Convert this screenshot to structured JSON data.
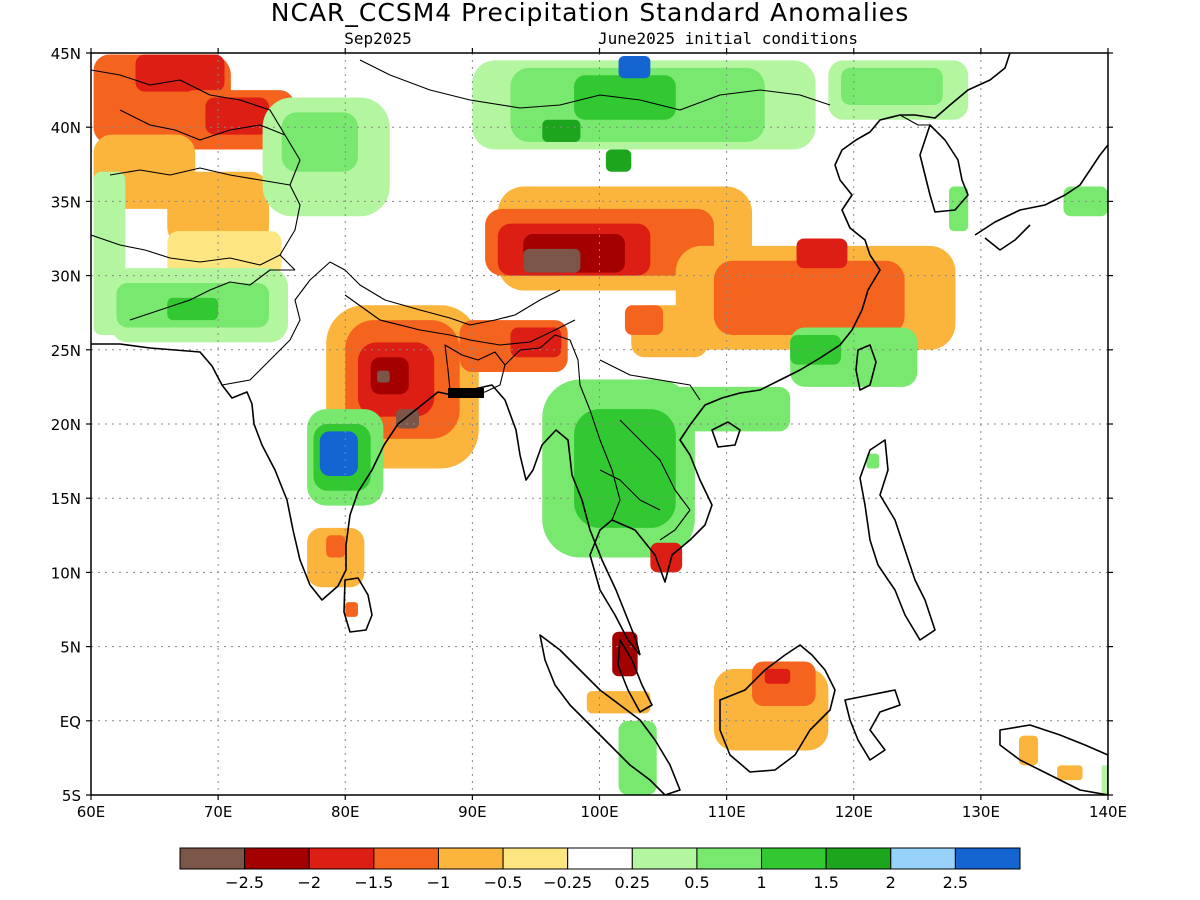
{
  "title": "NCAR_CCSM4 Precipitation Standard Anomalies",
  "subtitle_left": "Sep2025",
  "subtitle_right": "June2025 initial conditions",
  "map_extent": {
    "lon_min": 60,
    "lon_max": 140,
    "lat_min": -5,
    "lat_max": 45
  },
  "lon_ticks": [
    {
      "value": 60,
      "label": "60E"
    },
    {
      "value": 70,
      "label": "70E"
    },
    {
      "value": 80,
      "label": "80E"
    },
    {
      "value": 90,
      "label": "90E"
    },
    {
      "value": 100,
      "label": "100E"
    },
    {
      "value": 110,
      "label": "110E"
    },
    {
      "value": 120,
      "label": "120E"
    },
    {
      "value": 130,
      "label": "130E"
    },
    {
      "value": 140,
      "label": "140E"
    }
  ],
  "lat_ticks": [
    {
      "value": 45,
      "label": "45N"
    },
    {
      "value": 40,
      "label": "40N"
    },
    {
      "value": 35,
      "label": "35N"
    },
    {
      "value": 30,
      "label": "30N"
    },
    {
      "value": 25,
      "label": "25N"
    },
    {
      "value": 20,
      "label": "20N"
    },
    {
      "value": 15,
      "label": "15N"
    },
    {
      "value": 10,
      "label": "10N"
    },
    {
      "value": 5,
      "label": "5N"
    },
    {
      "value": 0,
      "label": "EQ"
    },
    {
      "value": -5,
      "label": "5S"
    }
  ],
  "colorbar": {
    "colors": [
      "#7b5548",
      "#a50000",
      "#dc1e14",
      "#f5641e",
      "#fbb43c",
      "#fde682",
      "#ffffff",
      "#b4f5a0",
      "#78e86e",
      "#32c832",
      "#1ea51e",
      "#96d2fa",
      "#1464d2"
    ],
    "labels": [
      "−2.5",
      "−2",
      "−1.5",
      "−1",
      "−0.5",
      "−0.25",
      "0.25",
      "0.5",
      "1",
      "1.5",
      "2",
      "2.5"
    ]
  },
  "anomaly_regions": [
    {
      "level": -1.0,
      "lon": 60.2,
      "lat": 44.9,
      "w": 5.0,
      "h": 6.0
    },
    {
      "level": -1.0,
      "lon": 63.0,
      "lat": 44.9,
      "w": 8.0,
      "h": 5.5
    },
    {
      "level": -1.5,
      "lon": 63.5,
      "lat": 44.9,
      "w": 7.0,
      "h": 2.5
    },
    {
      "level": -1.0,
      "lon": 67.0,
      "lat": 42.5,
      "w": 9.0,
      "h": 4.0
    },
    {
      "level": -1.5,
      "lon": 69.0,
      "lat": 42.0,
      "w": 5.0,
      "h": 2.5
    },
    {
      "level": -0.5,
      "lon": 60.2,
      "lat": 39.5,
      "w": 8.0,
      "h": 5.0
    },
    {
      "level": -0.5,
      "lon": 66.0,
      "lat": 37.0,
      "w": 8.0,
      "h": 5.0
    },
    {
      "level": -0.25,
      "lon": 66.0,
      "lat": 33.0,
      "w": 9.0,
      "h": 3.0
    },
    {
      "level": 0.5,
      "lon": 60.2,
      "lat": 37.0,
      "w": 2.5,
      "h": 11.0
    },
    {
      "level": 0.5,
      "lon": 61.5,
      "lat": 30.5,
      "w": 14.0,
      "h": 5.0
    },
    {
      "level": 1.0,
      "lon": 62.0,
      "lat": 29.5,
      "w": 12.0,
      "h": 3.0
    },
    {
      "level": 1.5,
      "lon": 66.0,
      "lat": 28.5,
      "w": 4.0,
      "h": 1.5
    },
    {
      "level": 0.5,
      "lon": 73.5,
      "lat": 42.0,
      "w": 10.0,
      "h": 8.0
    },
    {
      "level": 1.0,
      "lon": 75.0,
      "lat": 41.0,
      "w": 6.0,
      "h": 4.0
    },
    {
      "level": 0.5,
      "lon": 90.0,
      "lat": 44.5,
      "w": 27.0,
      "h": 6.0
    },
    {
      "level": 1.0,
      "lon": 93.0,
      "lat": 44.0,
      "w": 20.0,
      "h": 5.0
    },
    {
      "level": 1.5,
      "lon": 98.0,
      "lat": 43.5,
      "w": 8.0,
      "h": 3.0
    },
    {
      "level": 2.5,
      "lon": 101.5,
      "lat": 44.8,
      "w": 2.5,
      "h": 1.5
    },
    {
      "level": 2.0,
      "lon": 95.5,
      "lat": 40.5,
      "w": 3.0,
      "h": 1.5
    },
    {
      "level": 2.0,
      "lon": 100.5,
      "lat": 38.5,
      "w": 2.0,
      "h": 1.5
    },
    {
      "level": 0.5,
      "lon": 118.0,
      "lat": 44.5,
      "w": 11.0,
      "h": 4.0
    },
    {
      "level": 1.0,
      "lon": 119.0,
      "lat": 44.0,
      "w": 8.0,
      "h": 2.5
    },
    {
      "level": -0.5,
      "lon": 92.0,
      "lat": 36.0,
      "w": 20.0,
      "h": 7.0
    },
    {
      "level": -1.0,
      "lon": 91.0,
      "lat": 34.5,
      "w": 18.0,
      "h": 4.5
    },
    {
      "level": -1.5,
      "lon": 92.0,
      "lat": 33.5,
      "w": 12.0,
      "h": 3.5
    },
    {
      "level": -2.0,
      "lon": 94.0,
      "lat": 32.8,
      "w": 8.0,
      "h": 2.6
    },
    {
      "level": -2.5,
      "lon": 94.0,
      "lat": 31.8,
      "w": 4.5,
      "h": 1.6
    },
    {
      "level": -0.5,
      "lon": 106.0,
      "lat": 32.0,
      "w": 22.0,
      "h": 7.0
    },
    {
      "level": -1.0,
      "lon": 109.0,
      "lat": 31.0,
      "w": 15.0,
      "h": 5.0
    },
    {
      "level": -1.5,
      "lon": 115.5,
      "lat": 32.5,
      "w": 4.0,
      "h": 2.0
    },
    {
      "level": -0.5,
      "lon": 102.5,
      "lat": 28.0,
      "w": 6.0,
      "h": 3.5
    },
    {
      "level": -1.0,
      "lon": 102.0,
      "lat": 28.0,
      "w": 3.0,
      "h": 2.0
    },
    {
      "level": 1.0,
      "lon": 115.0,
      "lat": 26.5,
      "w": 10.0,
      "h": 4.0
    },
    {
      "level": 1.5,
      "lon": 115.0,
      "lat": 26.0,
      "w": 4.0,
      "h": 2.0
    },
    {
      "level": 1.0,
      "lon": 103.0,
      "lat": 22.5,
      "w": 12.0,
      "h": 3.0
    },
    {
      "level": -0.5,
      "lon": 78.5,
      "lat": 28.0,
      "w": 12.0,
      "h": 11.0
    },
    {
      "level": -1.0,
      "lon": 80.0,
      "lat": 27.0,
      "w": 9.0,
      "h": 8.0
    },
    {
      "level": -1.5,
      "lon": 81.0,
      "lat": 25.5,
      "w": 6.0,
      "h": 5.0
    },
    {
      "level": -2.0,
      "lon": 82.0,
      "lat": 24.5,
      "w": 3.0,
      "h": 2.5
    },
    {
      "level": -2.5,
      "lon": 82.5,
      "lat": 23.6,
      "w": 1.0,
      "h": 0.8
    },
    {
      "level": -2.5,
      "lon": 84.0,
      "lat": 21.0,
      "w": 1.8,
      "h": 1.3
    },
    {
      "level": -1.0,
      "lon": 89.0,
      "lat": 27.0,
      "w": 8.5,
      "h": 3.5
    },
    {
      "level": -1.5,
      "lon": 93.0,
      "lat": 26.5,
      "w": 4.0,
      "h": 2.0
    },
    {
      "level": 1.0,
      "lon": 77.0,
      "lat": 21.0,
      "w": 6.0,
      "h": 6.5
    },
    {
      "level": 1.5,
      "lon": 77.5,
      "lat": 20.0,
      "w": 4.5,
      "h": 4.5
    },
    {
      "level": 2.5,
      "lon": 78.0,
      "lat": 19.5,
      "w": 3.0,
      "h": 3.0
    },
    {
      "level": 1.0,
      "lon": 95.5,
      "lat": 23.0,
      "w": 12.0,
      "h": 12.0
    },
    {
      "level": 1.5,
      "lon": 98.0,
      "lat": 21.0,
      "w": 8.0,
      "h": 8.0
    },
    {
      "level": -0.5,
      "lon": 77.0,
      "lat": 13.0,
      "w": 4.5,
      "h": 4.0
    },
    {
      "level": -1.0,
      "lon": 78.5,
      "lat": 12.5,
      "w": 1.5,
      "h": 1.5
    },
    {
      "level": -1.0,
      "lon": 80.0,
      "lat": 8.0,
      "w": 1.0,
      "h": 1.0
    },
    {
      "level": -1.5,
      "lon": 104.0,
      "lat": 12.0,
      "w": 2.5,
      "h": 2.0
    },
    {
      "level": -2.0,
      "lon": 101.0,
      "lat": 6.0,
      "w": 2.0,
      "h": 3.0
    },
    {
      "level": -0.5,
      "lon": 109.0,
      "lat": 3.5,
      "w": 9.0,
      "h": 5.5
    },
    {
      "level": -1.0,
      "lon": 112.0,
      "lat": 4.0,
      "w": 5.0,
      "h": 3.0
    },
    {
      "level": -1.5,
      "lon": 113.0,
      "lat": 3.5,
      "w": 2.0,
      "h": 1.0
    },
    {
      "level": -0.5,
      "lon": 99.0,
      "lat": 2.0,
      "w": 5.0,
      "h": 1.5
    },
    {
      "level": 1.0,
      "lon": 101.5,
      "lat": 0.0,
      "w": 3.0,
      "h": 5.0
    },
    {
      "level": -0.5,
      "lon": 133.0,
      "lat": -1.0,
      "w": 1.5,
      "h": 2.0
    },
    {
      "level": -0.5,
      "lon": 136.0,
      "lat": -3.0,
      "w": 2.0,
      "h": 1.0
    },
    {
      "level": 0.5,
      "lon": 139.5,
      "lat": -3.0,
      "w": 0.5,
      "h": 2.0
    },
    {
      "level": 1.0,
      "lon": 127.5,
      "lat": 36.0,
      "w": 1.5,
      "h": 3.0
    },
    {
      "level": 1.0,
      "lon": 136.5,
      "lat": 36.0,
      "w": 3.5,
      "h": 2.0
    },
    {
      "level": 1.0,
      "lon": 121.0,
      "lat": 18.0,
      "w": 1.0,
      "h": 1.0
    }
  ]
}
